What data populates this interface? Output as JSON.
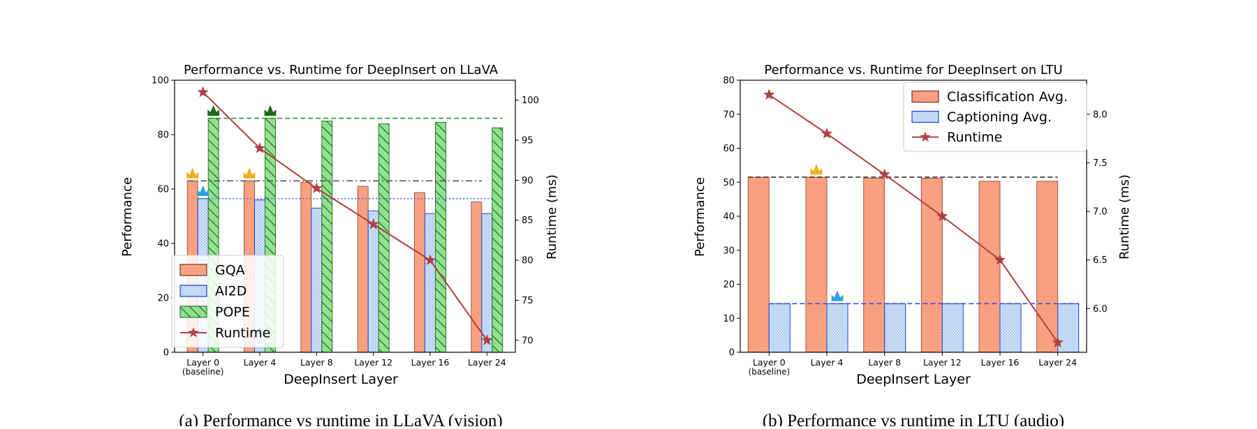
{
  "chart_data": [
    {
      "type": "bar",
      "title": "Performance vs. Runtime for DeepInsert on LLaVA",
      "caption": "(a) Performance vs runtime in LLaVA (vision)",
      "xlabel": "DeepInsert Layer",
      "ylabel": "Performance",
      "y2label": "Runtime (ms)",
      "categories": [
        "Layer 0",
        "Layer 4",
        "Layer 8",
        "Layer 12",
        "Layer 16",
        "Layer 24"
      ],
      "category_sublabels": [
        "(baseline)",
        "",
        "",
        "",
        "",
        ""
      ],
      "ylim": [
        0,
        100
      ],
      "yticks": [
        0,
        20,
        40,
        60,
        80,
        100
      ],
      "y2lim": [
        68.5,
        102.5
      ],
      "y2ticks": [
        70,
        75,
        80,
        85,
        90,
        95,
        100
      ],
      "series": [
        {
          "name": "GQA",
          "values": [
            63.0,
            63.0,
            62.5,
            61.0,
            58.7,
            55.3
          ],
          "color": "#f8a080",
          "pattern": "solid",
          "axis": "left"
        },
        {
          "name": "AI2D",
          "values": [
            56.5,
            56.0,
            53.0,
            52.0,
            51.0,
            51.0
          ],
          "color": "#a8c8f0",
          "pattern": "dots",
          "axis": "left"
        },
        {
          "name": "POPE",
          "values": [
            86.0,
            86.0,
            85.0,
            84.0,
            84.5,
            82.5
          ],
          "color": "#90e090",
          "pattern": "hatch",
          "axis": "left"
        },
        {
          "name": "Runtime",
          "type": "line",
          "values": [
            101.0,
            94.0,
            89.0,
            84.5,
            80.0,
            70.0
          ],
          "color": "#b04040",
          "axis": "right"
        }
      ],
      "reference_lines": [
        {
          "series": "POPE",
          "value": 86.0,
          "color": "#2a9a2a",
          "style": "dashed"
        },
        {
          "series": "GQA",
          "value": 63.0,
          "color": "#555555",
          "style": "dashdot"
        },
        {
          "series": "AI2D",
          "value": 56.5,
          "color": "#4a6af0",
          "style": "dotted"
        }
      ],
      "crowns": [
        {
          "series": "POPE",
          "category": 0,
          "color": "#1a6a1a"
        },
        {
          "series": "POPE",
          "category": 1,
          "color": "#1a6a1a"
        },
        {
          "series": "GQA",
          "category": 0,
          "color": "#f0b020"
        },
        {
          "series": "GQA",
          "category": 1,
          "color": "#f0b020"
        },
        {
          "series": "AI2D",
          "category": 0,
          "color": "#30a0e8"
        }
      ],
      "legend_position": "lower-left",
      "grid": false
    },
    {
      "type": "bar",
      "title": "Performance vs. Runtime for DeepInsert on LTU",
      "caption": "(b) Performance vs runtime in LTU (audio)",
      "xlabel": "DeepInsert Layer",
      "ylabel": "Performance",
      "y2label": "Runtime (ms)",
      "categories": [
        "Layer 0",
        "Layer 4",
        "Layer 8",
        "Layer 12",
        "Layer 16",
        "Layer 24"
      ],
      "category_sublabels": [
        "(baseline)",
        "",
        "",
        "",
        "",
        ""
      ],
      "ylim": [
        0,
        80
      ],
      "yticks": [
        0,
        10,
        20,
        30,
        40,
        50,
        60,
        70,
        80
      ],
      "y2lim": [
        5.55,
        8.35
      ],
      "y2ticks": [
        6.0,
        6.5,
        7.0,
        7.5,
        8.0
      ],
      "series": [
        {
          "name": "Classification Avg.",
          "values": [
            51.5,
            51.5,
            51.2,
            51.2,
            50.3,
            50.3
          ],
          "color": "#f8a080",
          "pattern": "solid",
          "axis": "left"
        },
        {
          "name": "Captioning Avg.",
          "values": [
            14.3,
            14.3,
            14.3,
            14.3,
            14.3,
            14.3
          ],
          "color": "#a8c8f0",
          "pattern": "dots",
          "axis": "left"
        },
        {
          "name": "Runtime",
          "type": "line",
          "values": [
            8.2,
            7.8,
            7.38,
            6.95,
            6.5,
            5.65
          ],
          "color": "#b04040",
          "axis": "right"
        }
      ],
      "reference_lines": [
        {
          "series": "Classification Avg.",
          "value": 51.5,
          "color": "#333333",
          "style": "dashed"
        },
        {
          "series": "Captioning Avg.",
          "value": 14.3,
          "color": "#3a4af0",
          "style": "dashed"
        }
      ],
      "crowns": [
        {
          "series": "Classification Avg.",
          "category": 1,
          "color": "#f0b020"
        },
        {
          "series": "Captioning Avg.",
          "category": 1,
          "color": "#30a0e8"
        }
      ],
      "legend_position": "top-right",
      "grid": false
    }
  ]
}
